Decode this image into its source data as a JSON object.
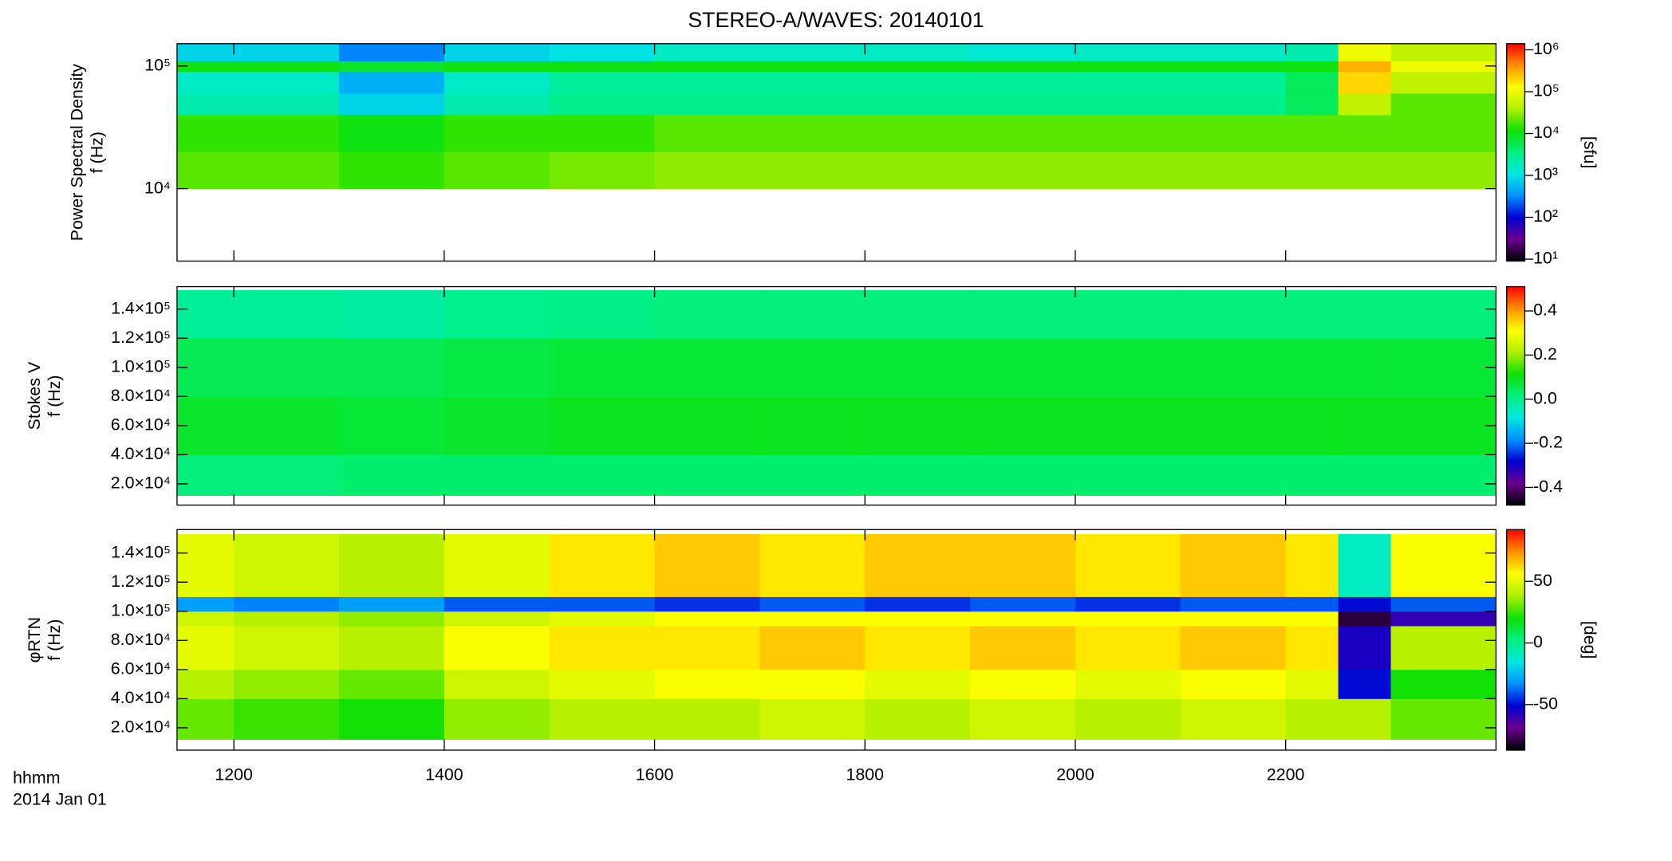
{
  "title": "STEREO-A/WAVES: 20140101",
  "time_label": "hhmm",
  "date_label": "2014 Jan 01",
  "colormap": [
    "#000000",
    "#6a0090",
    "#0000d0",
    "#0090ff",
    "#00e8e0",
    "#00f080",
    "#10e000",
    "#b0f000",
    "#ffff00",
    "#ff9000",
    "#ff0000"
  ],
  "chart_data": [
    {
      "type": "heatmap",
      "ylabel": [
        "Power Spectral Density",
        "f (Hz)"
      ],
      "ylog": true,
      "xlim": [
        11.46,
        24
      ],
      "ylim": [
        2570,
        152000
      ],
      "yticks": [
        {
          "value": 10000,
          "label": "10⁴"
        },
        {
          "value": 100000,
          "label": "10⁵"
        }
      ],
      "x_edges": [
        11.46,
        12,
        13,
        14,
        15,
        16,
        17,
        18,
        19,
        20,
        21,
        22,
        22.5,
        23,
        24
      ],
      "y_edges": [
        10000,
        20000,
        40000,
        60000,
        90000,
        110000,
        152000
      ],
      "z": [
        [
          20000,
          20000,
          15000,
          20000,
          25000,
          30000,
          30000,
          30000,
          30000,
          30000,
          30000,
          30000,
          30000,
          30000
        ],
        [
          15000,
          15000,
          10000,
          15000,
          15000,
          20000,
          20000,
          20000,
          20000,
          20000,
          20000,
          20000,
          20000,
          20000
        ],
        [
          2000,
          2000,
          800,
          2000,
          3000,
          3000,
          3000,
          3000,
          3000,
          3000,
          3000,
          5000,
          50000,
          20000
        ],
        [
          1500,
          1500,
          500,
          1500,
          2500,
          2500,
          2500,
          2500,
          2500,
          2500,
          2500,
          5000,
          200000,
          50000
        ],
        [
          10000,
          10000,
          8000,
          10000,
          10000,
          10000,
          10000,
          10000,
          10000,
          10000,
          10000,
          10000,
          300000,
          100000
        ],
        [
          800,
          800,
          300,
          800,
          1000,
          1500,
          1500,
          1500,
          1200,
          1500,
          1500,
          2000,
          100000,
          50000
        ]
      ],
      "clog": true,
      "clim": [
        9,
        1400000
      ],
      "cticks": [
        {
          "value": 10,
          "label": "10¹"
        },
        {
          "value": 100,
          "label": "10²"
        },
        {
          "value": 1000,
          "label": "10³"
        },
        {
          "value": 10000,
          "label": "10⁴"
        },
        {
          "value": 100000,
          "label": "10⁵"
        },
        {
          "value": 1000000,
          "label": "10⁶"
        }
      ],
      "clabel": "[sfu]"
    },
    {
      "type": "heatmap",
      "ylabel": [
        "Stokes V",
        "f (Hz)"
      ],
      "ylog": false,
      "xlim": [
        11.46,
        24
      ],
      "ylim": [
        5400,
        155400
      ],
      "yticks": [
        {
          "value": 20000,
          "label": "2.0×10⁴"
        },
        {
          "value": 40000,
          "label": "4.0×10⁴"
        },
        {
          "value": 60000,
          "label": "6.0×10⁴"
        },
        {
          "value": 80000,
          "label": "8.0×10⁴"
        },
        {
          "value": 100000,
          "label": "1.0×10⁵"
        },
        {
          "value": 120000,
          "label": "1.2×10⁵"
        },
        {
          "value": 140000,
          "label": "1.4×10⁵"
        }
      ],
      "x_edges": [
        11.46,
        12,
        13,
        14,
        15,
        16,
        17,
        18,
        19,
        20,
        21,
        22,
        22.5,
        23,
        24
      ],
      "y_edges": [
        12000,
        40000,
        80000,
        120000,
        153000
      ],
      "z": [
        [
          0.02,
          0.02,
          0.03,
          0.03,
          0.03,
          0.03,
          0.03,
          0.03,
          0.03,
          0.03,
          0.03,
          0.03,
          0.03,
          0.03
        ],
        [
          0.08,
          0.08,
          0.07,
          0.08,
          0.09,
          0.09,
          0.09,
          0.09,
          0.09,
          0.09,
          0.09,
          0.09,
          0.09,
          0.09
        ],
        [
          0.05,
          0.05,
          0.05,
          0.06,
          0.07,
          0.07,
          0.07,
          0.07,
          0.07,
          0.07,
          0.07,
          0.07,
          0.07,
          0.07
        ],
        [
          -0.01,
          -0.01,
          -0.02,
          0.0,
          0.01,
          0.02,
          0.02,
          0.02,
          0.02,
          0.02,
          0.02,
          0.02,
          0.02,
          0.02
        ]
      ],
      "clog": false,
      "clim": [
        -0.48,
        0.51
      ],
      "cticks": [
        {
          "value": -0.4,
          "label": "-0.4"
        },
        {
          "value": -0.2,
          "label": "-0.2"
        },
        {
          "value": 0,
          "label": "0.0"
        },
        {
          "value": 0.2,
          "label": "0.2"
        },
        {
          "value": 0.4,
          "label": "0.4"
        }
      ]
    },
    {
      "type": "heatmap",
      "ylabel": [
        "φRTN",
        "f (Hz)"
      ],
      "ylog": false,
      "xlim": [
        11.46,
        24
      ],
      "ylim": [
        4640,
        156100
      ],
      "xticks": [
        {
          "value": 12,
          "label": "1200"
        },
        {
          "value": 14,
          "label": "1400"
        },
        {
          "value": 16,
          "label": "1600"
        },
        {
          "value": 18,
          "label": "1800"
        },
        {
          "value": 20,
          "label": "2000"
        },
        {
          "value": 22,
          "label": "2200"
        }
      ],
      "yticks": [
        {
          "value": 20000,
          "label": "2.0×10⁴"
        },
        {
          "value": 40000,
          "label": "4.0×10⁴"
        },
        {
          "value": 60000,
          "label": "6.0×10⁴"
        },
        {
          "value": 80000,
          "label": "8.0×10⁴"
        },
        {
          "value": 100000,
          "label": "1.0×10⁵"
        },
        {
          "value": 120000,
          "label": "1.2×10⁵"
        },
        {
          "value": 140000,
          "label": "1.4×10⁵"
        }
      ],
      "x_edges": [
        11.46,
        12,
        13,
        14,
        15,
        16,
        17,
        18,
        19,
        20,
        21,
        22,
        22.5,
        23,
        24
      ],
      "y_edges": [
        12000,
        40000,
        60000,
        90000,
        100000,
        110000,
        153000
      ],
      "z": [
        [
          30,
          25,
          20,
          35,
          40,
          40,
          45,
          40,
          45,
          40,
          45,
          40,
          40,
          30
        ],
        [
          40,
          35,
          30,
          45,
          50,
          55,
          55,
          50,
          55,
          50,
          55,
          50,
          -50,
          20
        ],
        [
          50,
          45,
          40,
          55,
          60,
          60,
          65,
          60,
          65,
          60,
          65,
          60,
          -55,
          40
        ],
        [
          45,
          40,
          35,
          45,
          50,
          55,
          55,
          55,
          55,
          55,
          55,
          55,
          -80,
          -60
        ],
        [
          -30,
          -35,
          -30,
          -40,
          -40,
          -45,
          -40,
          -45,
          -40,
          -45,
          -40,
          -40,
          -50,
          -40
        ],
        [
          50,
          45,
          40,
          50,
          60,
          65,
          60,
          65,
          65,
          60,
          65,
          60,
          -10,
          55
        ]
      ],
      "clog": false,
      "clim": [
        -87,
        92
      ],
      "cticks": [
        {
          "value": -50,
          "label": "-50"
        },
        {
          "value": 0,
          "label": "0"
        },
        {
          "value": 50,
          "label": "50"
        }
      ],
      "clabel": "[deg]"
    }
  ]
}
